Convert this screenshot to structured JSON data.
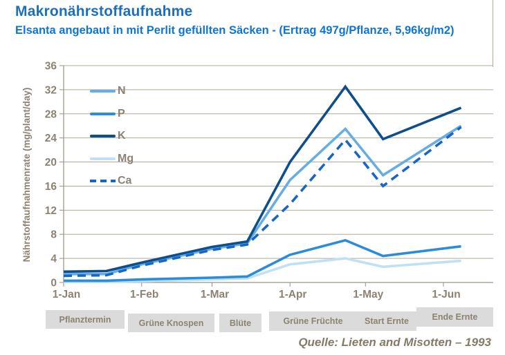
{
  "header": {
    "title": "Makronährstoffaufnahme",
    "subtitle": "Elsanta angebaut in mit Perlit gefüllten Säcken - (Ertrag 497g/Pflanze, 5,96kg/m2)"
  },
  "source": "Quelle: Lieten and Misotten – 1993",
  "phases": [
    "Pflanztermin",
    "Grüne Knospen",
    "Blüte",
    "Grüne Früchte",
    "Start Ernte",
    "Ende Ernte"
  ],
  "colors": {
    "title_blue": "#1A6FC2",
    "subtitle_blue": "#0E74D6",
    "axis_text": "#8C8272",
    "gridline": "#B3A998",
    "axis_line": "#9A9080",
    "phase_box": "#DBDBDB"
  },
  "chart_data": {
    "type": "line",
    "title": "Makronährstoffaufnahme",
    "xlabel": "",
    "ylabel": "Nährstoffaufnahmenrate (mg/plant/day)",
    "ylim": [
      0,
      36
    ],
    "grid": true,
    "legend_position": "upper-left-inside",
    "y_ticks": [
      0,
      4,
      8,
      12,
      16,
      20,
      24,
      28,
      32,
      36
    ],
    "x_ticks": [
      {
        "label": "1-Jan",
        "day": 0
      },
      {
        "label": "1-Feb",
        "day": 31
      },
      {
        "label": "1-Mar",
        "day": 59
      },
      {
        "label": "1-Apr",
        "day": 90
      },
      {
        "label": "1-May",
        "day": 120
      },
      {
        "label": "1-Jun",
        "day": 151
      }
    ],
    "x_days": [
      0,
      17,
      31,
      59,
      73,
      90,
      112,
      127,
      158
    ],
    "series": [
      {
        "name": "N",
        "color": "#66ADE5",
        "dash": null,
        "values": [
          1.4,
          1.4,
          3.0,
          5.6,
          6.5,
          17.0,
          25.5,
          17.8,
          26.0
        ]
      },
      {
        "name": "P",
        "color": "#2B8CDB",
        "dash": null,
        "values": [
          0.3,
          0.3,
          0.5,
          0.8,
          1.0,
          4.6,
          7.0,
          4.4,
          6.0
        ]
      },
      {
        "name": "K",
        "color": "#0E4E8C",
        "dash": null,
        "values": [
          1.8,
          1.9,
          3.3,
          5.9,
          6.8,
          20.0,
          32.5,
          23.8,
          29.0
        ]
      },
      {
        "name": "Mg",
        "color": "#BFE0F5",
        "dash": null,
        "values": [
          0.1,
          0.1,
          0.2,
          0.5,
          0.7,
          3.0,
          4.0,
          2.6,
          3.6
        ]
      },
      {
        "name": "Ca",
        "color": "#1566C8",
        "dash": "12 8",
        "values": [
          1.1,
          1.2,
          2.8,
          5.4,
          6.3,
          13.0,
          23.7,
          16.0,
          25.8
        ]
      }
    ]
  }
}
